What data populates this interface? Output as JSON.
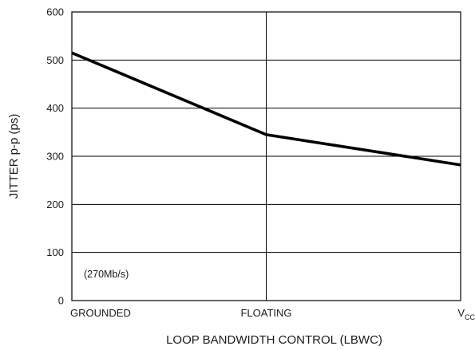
{
  "chart_data": {
    "type": "line",
    "categories": [
      "GROUNDED",
      "FLOATING",
      "V"
    ],
    "category_subscripts": [
      "",
      "",
      "CC"
    ],
    "series": [
      {
        "values": [
          515,
          345,
          282
        ]
      }
    ],
    "xlabel": "LOOP BANDWIDTH CONTROL (LBWC)",
    "ylabel": "JITTER p-p (ps)",
    "ylim": [
      0,
      600
    ],
    "yticks": [
      0,
      100,
      200,
      300,
      400,
      500,
      600
    ],
    "annotation": "(270Mb/s)",
    "grid": true
  }
}
